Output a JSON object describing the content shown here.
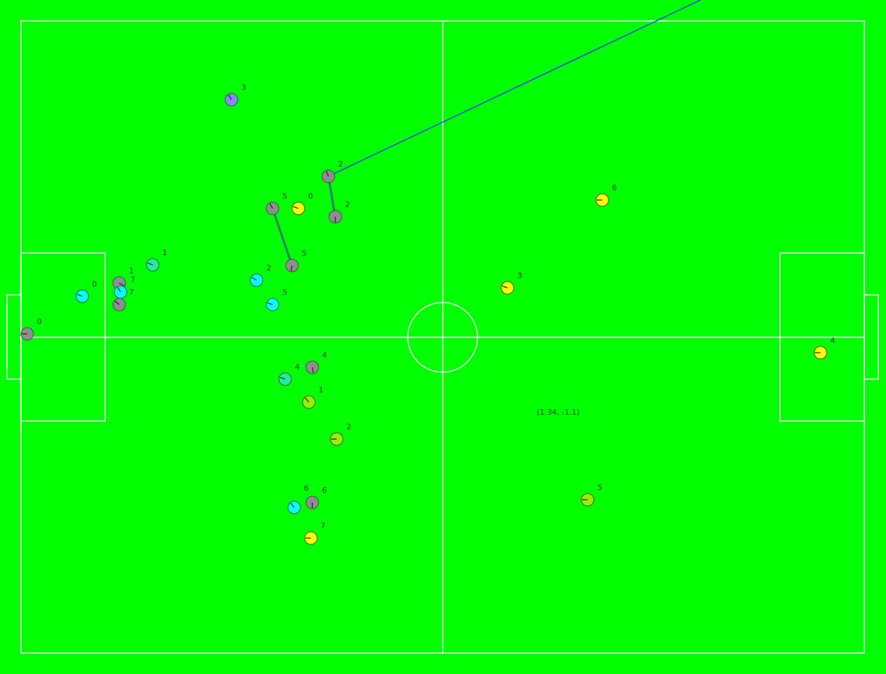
{
  "coordinate_readout": "(1.34, -1.1)",
  "colors": {
    "field": "#00ff00",
    "lines": "#ffffff",
    "marker_outline": "#4a4a4a",
    "pass_line": "#3333ff",
    "move_line": "#2a7a6a"
  },
  "robots": [
    {
      "id": "grey-0",
      "label": "0",
      "color": "#8f8f8f"
    },
    {
      "id": "grey-1",
      "label": "1",
      "color": "#8f8f8f"
    },
    {
      "id": "grey-7",
      "label": "7",
      "color": "#8f8f8f"
    },
    {
      "id": "grey-5a",
      "label": "5",
      "color": "#8f8f8f"
    },
    {
      "id": "grey-5b",
      "label": "5",
      "color": "#8f8f8f"
    },
    {
      "id": "grey-2a",
      "label": "2",
      "color": "#8f8f8f"
    },
    {
      "id": "grey-2b",
      "label": "2",
      "color": "#8f8f8f"
    },
    {
      "id": "grey-4",
      "label": "4",
      "color": "#8f8f8f"
    },
    {
      "id": "grey-6",
      "label": "6",
      "color": "#8f8f8f"
    },
    {
      "id": "purple-3",
      "label": "3",
      "color": "#8a8aff"
    },
    {
      "id": "cyan-0",
      "label": "0",
      "color": "#00ffff"
    },
    {
      "id": "cyan-7",
      "label": "7",
      "color": "#00ffff"
    },
    {
      "id": "cyan-2",
      "label": "2",
      "color": "#00ffff"
    },
    {
      "id": "cyan-5",
      "label": "5",
      "color": "#00ffff"
    },
    {
      "id": "cyan-6",
      "label": "6",
      "color": "#00ffff"
    },
    {
      "id": "teal-1",
      "label": "1",
      "color": "#22ee99"
    },
    {
      "id": "teal-4",
      "label": "4",
      "color": "#22ee99"
    },
    {
      "id": "lime-1",
      "label": "1",
      "color": "#99ee00"
    },
    {
      "id": "lime-2",
      "label": "2",
      "color": "#99ee00"
    },
    {
      "id": "lime-5",
      "label": "5",
      "color": "#99ee00"
    },
    {
      "id": "yellow-0",
      "label": "0",
      "color": "#ffff00"
    },
    {
      "id": "yellow-3",
      "label": "3",
      "color": "#ffff00"
    },
    {
      "id": "yellow-6",
      "label": "6",
      "color": "#ffff00"
    },
    {
      "id": "yellow-4",
      "label": "4",
      "color": "#ffff00"
    },
    {
      "id": "yellow-7",
      "label": "7",
      "color": "#ffff00"
    }
  ]
}
